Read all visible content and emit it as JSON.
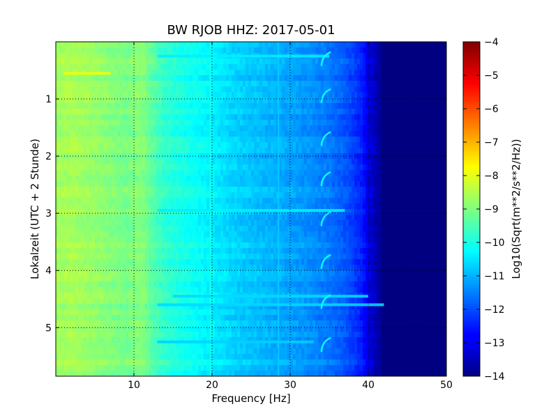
{
  "chart_data": {
    "type": "heatmap",
    "title": "BW RJOB HHZ: 2017-05-01",
    "xlabel": "Frequency [Hz]",
    "ylabel": "Lokalzeit (UTC + 2 Stunde)",
    "colorbar_label": "Log10(Sqrt(m**2/s**2/Hz))",
    "colormap": "jet",
    "grid": true,
    "y_inverted": true,
    "xlim": [
      0,
      50
    ],
    "ylim": [
      0,
      5.85
    ],
    "color_range": [
      -14,
      -4
    ],
    "x_ticks": [
      10,
      20,
      30,
      40,
      50
    ],
    "x_tick_labels": [
      "10",
      "20",
      "30",
      "40",
      "50"
    ],
    "y_ticks": [
      1,
      2,
      3,
      4,
      5
    ],
    "y_tick_labels": [
      "1",
      "2",
      "3",
      "4",
      "5"
    ],
    "colorbar_ticks": [
      -4,
      -5,
      -6,
      -7,
      -8,
      -9,
      -10,
      -11,
      -12,
      -13,
      -14
    ],
    "colorbar_tick_labels": [
      "−4",
      "−5",
      "−6",
      "−7",
      "−8",
      "−9",
      "−10",
      "−11",
      "−12",
      "−13",
      "−14"
    ],
    "frequency_profile": {
      "frequency_hz": [
        0,
        2,
        5,
        9,
        11,
        12,
        14,
        17,
        20,
        23,
        26,
        29,
        32,
        35,
        37,
        39,
        40,
        42,
        50
      ],
      "log10_amplitude": [
        -8.7,
        -8.6,
        -8.8,
        -9.1,
        -8.9,
        -9.3,
        -9.8,
        -10.1,
        -10.4,
        -10.7,
        -10.9,
        -11.1,
        -11.3,
        -11.6,
        -11.9,
        -12.4,
        -13.0,
        -14.0,
        -14.0
      ]
    },
    "horizontal_features": [
      {
        "time": 0.55,
        "f_start": 1,
        "f_end": 7,
        "level": -7.9
      },
      {
        "time": 0.25,
        "f_start": 13,
        "f_end": 35,
        "level": -10.4
      },
      {
        "time": 2.95,
        "f_start": 13,
        "f_end": 37,
        "level": -10.4
      },
      {
        "time": 4.45,
        "f_start": 15,
        "f_end": 40,
        "level": -10.6
      },
      {
        "time": 4.6,
        "f_start": 13,
        "f_end": 42,
        "level": -10.6
      },
      {
        "time": 5.25,
        "f_start": 13,
        "f_end": 33,
        "level": -10.7
      }
    ],
    "vertical_features": [
      {
        "freq": 10.8,
        "level": -9.0
      },
      {
        "freq": 11.8,
        "level": -9.2
      },
      {
        "freq": 19.8,
        "level": -10.0
      },
      {
        "freq": 28.5,
        "level": -10.7
      }
    ],
    "periodic_glide_events": {
      "time": [
        0.3,
        0.95,
        1.7,
        2.4,
        3.1,
        3.85,
        4.55,
        5.3
      ],
      "f_low": 34.0,
      "f_high": 35.2,
      "level": -10.2
    }
  }
}
